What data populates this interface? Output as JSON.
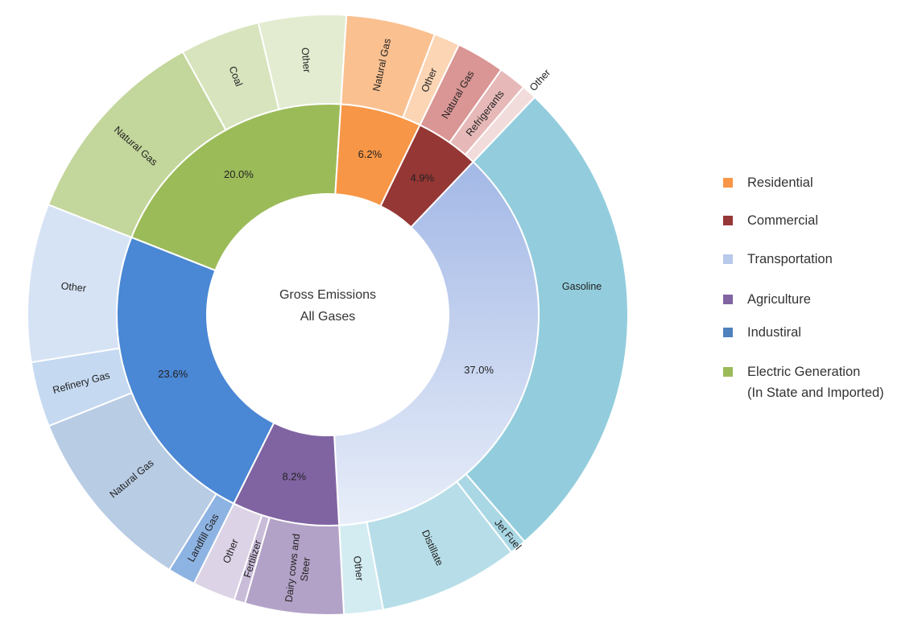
{
  "chart_data": {
    "type": "pie",
    "subtype": "sunburst",
    "center_label": [
      "Gross Emissions",
      "All Gases"
    ],
    "legend": [
      {
        "label": "Residential",
        "color": "#f79646"
      },
      {
        "label": "Commercial",
        "color": "#953735"
      },
      {
        "label": "Transportation",
        "color": "#c6d9f1"
      },
      {
        "label": "Agriculture",
        "color": "#8064a2"
      },
      {
        "label": "Industiral",
        "color": "#4f81bd"
      },
      {
        "label": "Electric Generation",
        "label2": "(In State and Imported)",
        "color": "#9bbb59"
      }
    ],
    "sectors": [
      {
        "name": "Electric Generation",
        "label": "20.0%",
        "value": 20.0,
        "color": "#9bbb59",
        "children": [
          {
            "label": "Natural Gas",
            "value": 11.0,
            "color": "#c3d69b"
          },
          {
            "label": "Coal",
            "value": 4.3,
            "color": "#d7e4bd"
          },
          {
            "label": "Other",
            "value": 4.7,
            "color": "#e3ecd1"
          }
        ]
      },
      {
        "name": "Residential",
        "label": "6.2%",
        "value": 6.2,
        "color": "#f79646",
        "children": [
          {
            "label": "Natural Gas",
            "value": 4.8,
            "color": "#fac090"
          },
          {
            "label": "Other",
            "value": 1.4,
            "color": "#fcd5b4"
          }
        ]
      },
      {
        "name": "Commercial",
        "label": "4.9%",
        "value": 4.9,
        "color": "#953735",
        "children": [
          {
            "label": "Natural Gas",
            "value": 2.6,
            "color": "#d99694"
          },
          {
            "label": "Refrigerants",
            "value": 1.5,
            "color": "#e6b9b8"
          },
          {
            "label": "Other",
            "value": 0.8,
            "color": "#f2dcdb"
          }
        ]
      },
      {
        "name": "Transportation",
        "label": "37.0%",
        "value": 37.0,
        "color": "#b7c8ea",
        "children": [
          {
            "label": "Gasoline",
            "value": 26.5,
            "color": "#93cddd"
          },
          {
            "label": "Jet Fuel",
            "value": 0.9,
            "color": "#a9d7e4"
          },
          {
            "label": "Distillate",
            "value": 7.5,
            "color": "#b7dee8"
          },
          {
            "label": "Other",
            "value": 2.1,
            "color": "#d3ecf2"
          }
        ]
      },
      {
        "name": "Agriculture",
        "label": "8.2%",
        "value": 8.2,
        "color": "#8064a2",
        "children": [
          {
            "label": "Dairy cows and Steer",
            "value": 5.3,
            "color": "#b3a2c7"
          },
          {
            "label": "Fertilizer",
            "value": 0.6,
            "color": "#c9bcd9"
          },
          {
            "label": "Other",
            "value": 2.3,
            "color": "#dcd3e6"
          }
        ]
      },
      {
        "name": "Industrial",
        "label": "23.6%",
        "value": 23.6,
        "color": "#4a87d4",
        "children": [
          {
            "label": "Landfill Gas",
            "value": 1.5,
            "color": "#8db3e2"
          },
          {
            "label": "Natural Gas",
            "value": 10.1,
            "color": "#b8cce4"
          },
          {
            "label": "Refinery Gas",
            "value": 3.5,
            "color": "#c5d9f1"
          },
          {
            "label": "Other",
            "value": 8.5,
            "color": "#d6e3f5"
          }
        ]
      }
    ]
  }
}
